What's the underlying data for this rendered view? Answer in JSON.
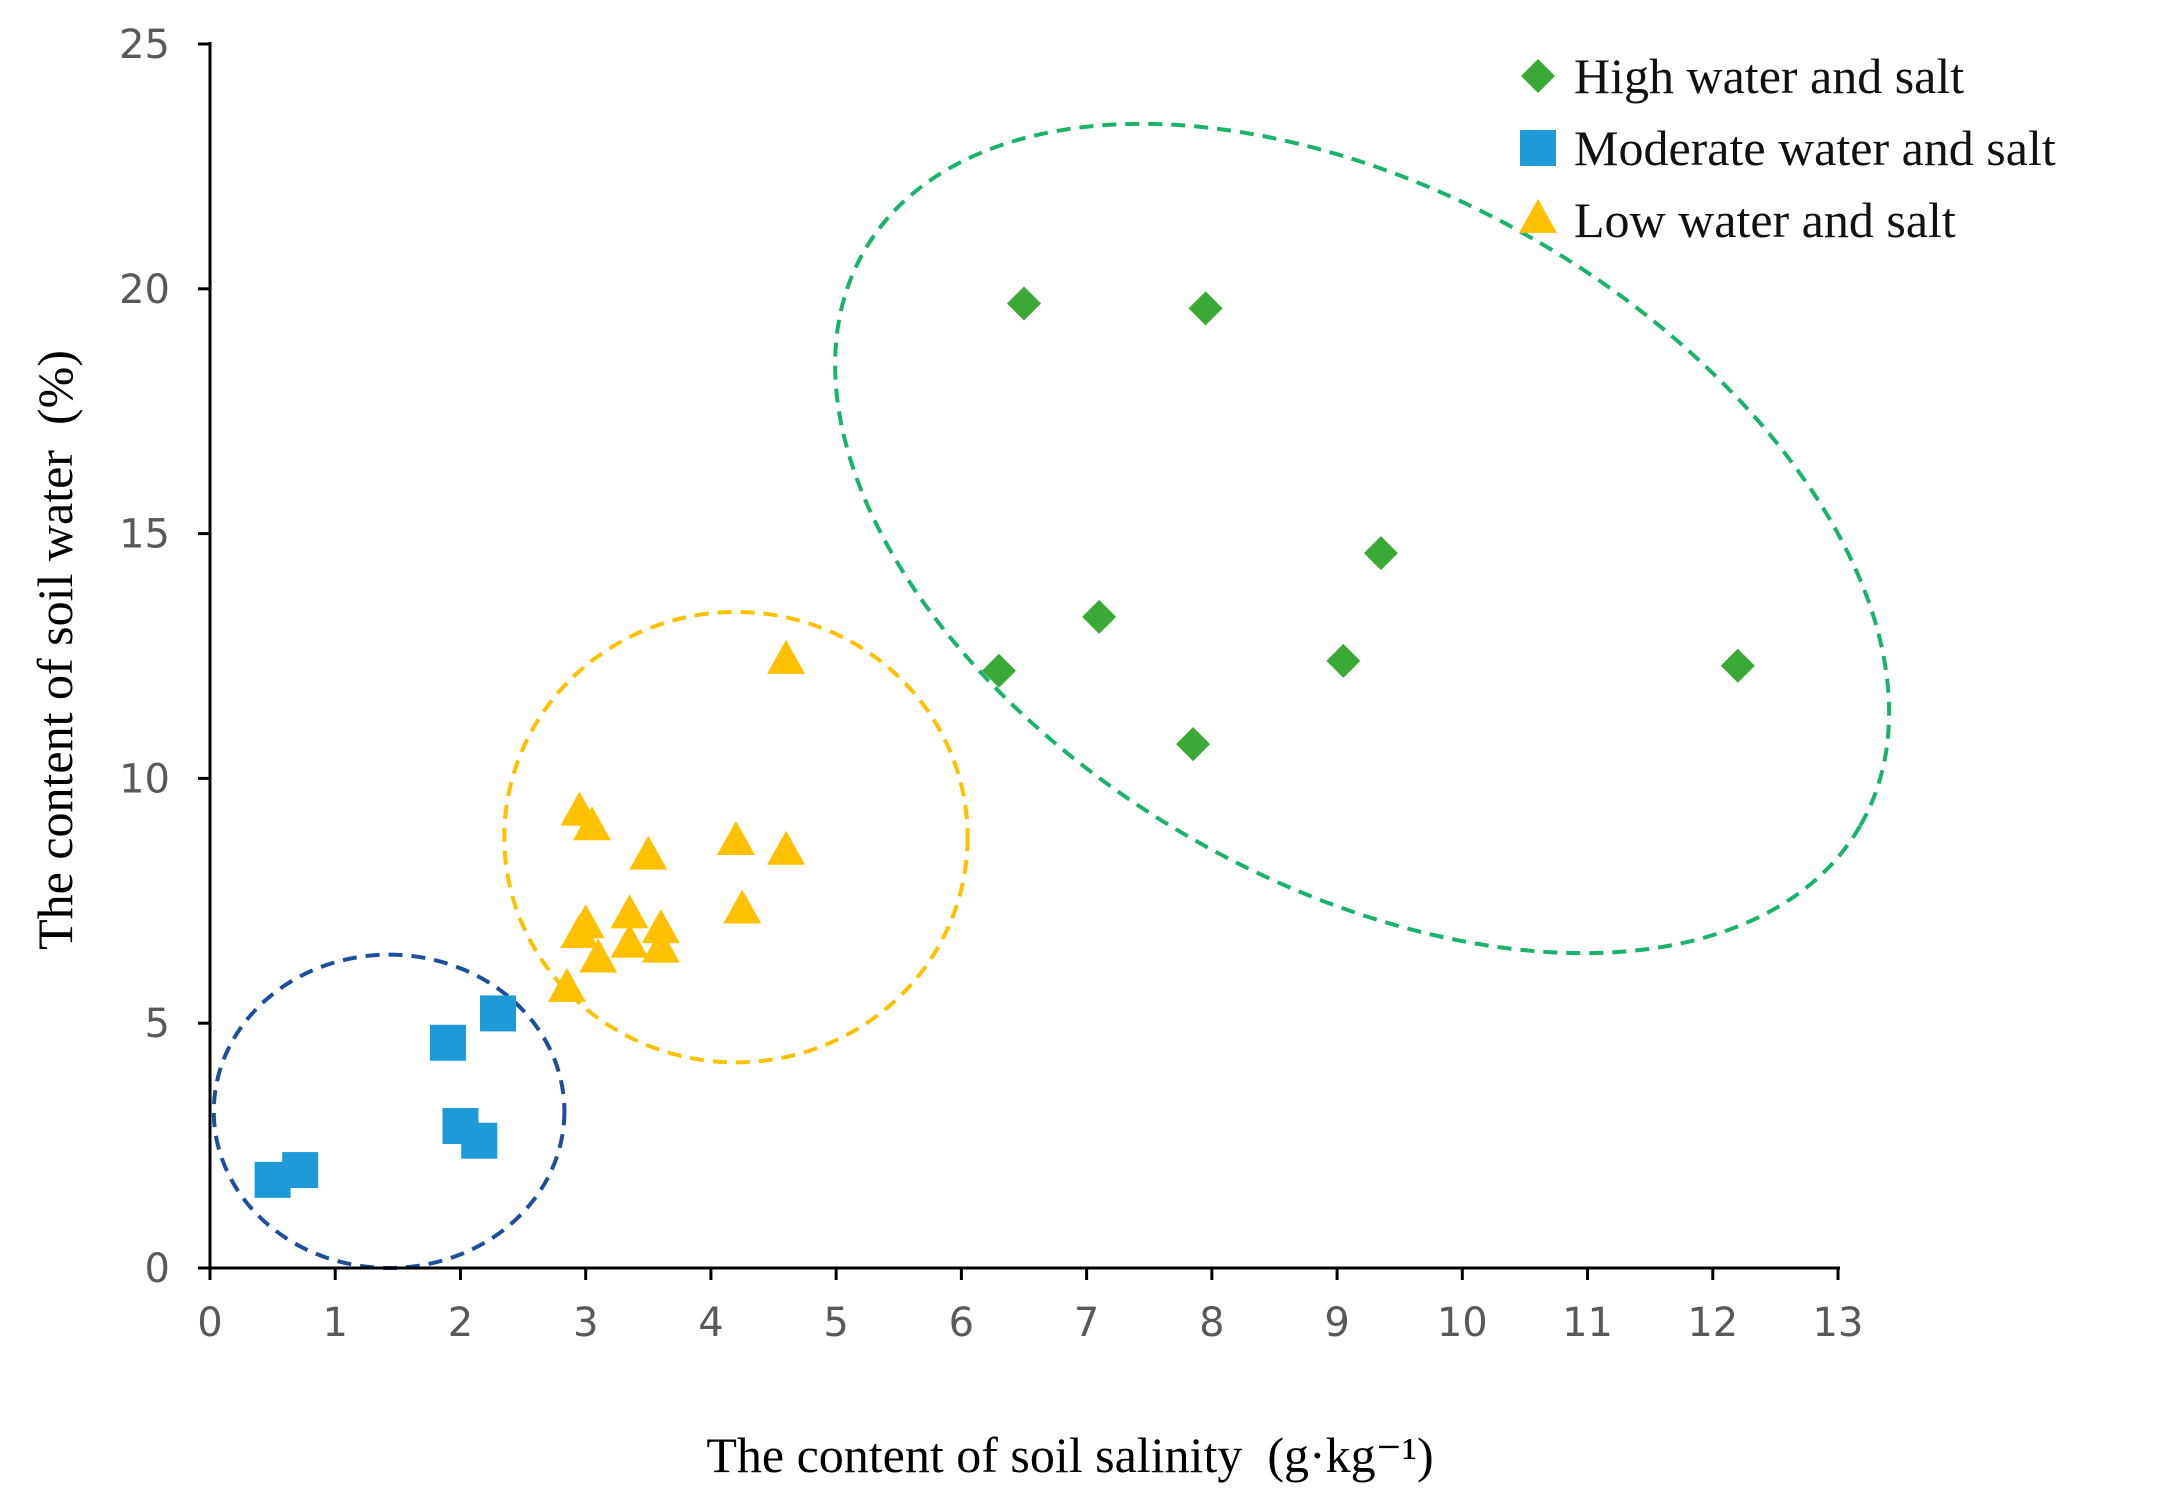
{
  "chart_data": {
    "type": "scatter",
    "title": "",
    "xlabel": "The content of soil salinity  (g·kg⁻¹)",
    "ylabel": "The content of soil water  (%)",
    "xlim": [
      0,
      13
    ],
    "ylim": [
      0,
      25
    ],
    "xticks": [
      "0",
      "1",
      "2",
      "3",
      "4",
      "5",
      "6",
      "7",
      "8",
      "9",
      "10",
      "11",
      "12",
      "13"
    ],
    "yticks": [
      "0",
      "5",
      "10",
      "15",
      "20",
      "25"
    ],
    "grid": false,
    "legend_position": "top-right",
    "series": [
      {
        "name": "High water and salt",
        "marker": "diamond",
        "color": "#3aa935",
        "points": [
          [
            6.5,
            19.7
          ],
          [
            7.95,
            19.6
          ],
          [
            9.35,
            14.6
          ],
          [
            7.1,
            13.3
          ],
          [
            6.3,
            12.2
          ],
          [
            9.05,
            12.4
          ],
          [
            12.2,
            12.3
          ],
          [
            7.85,
            10.7
          ]
        ]
      },
      {
        "name": "Moderate water and salt",
        "marker": "square",
        "color": "#1e9ad6",
        "points": [
          [
            2.3,
            5.2
          ],
          [
            1.9,
            4.6
          ],
          [
            2.0,
            2.9
          ],
          [
            2.15,
            2.6
          ],
          [
            0.5,
            1.8
          ],
          [
            0.72,
            2.0
          ]
        ]
      },
      {
        "name": "Low water and salt",
        "marker": "triangle",
        "color": "#ffc000",
        "points": [
          [
            4.6,
            12.4
          ],
          [
            2.95,
            9.3
          ],
          [
            3.05,
            9.0
          ],
          [
            4.2,
            8.7
          ],
          [
            4.6,
            8.5
          ],
          [
            3.5,
            8.4
          ],
          [
            4.25,
            7.3
          ],
          [
            3.35,
            7.2
          ],
          [
            2.95,
            6.8
          ],
          [
            3.0,
            7.0
          ],
          [
            3.6,
            6.9
          ],
          [
            3.1,
            6.3
          ],
          [
            3.35,
            6.6
          ],
          [
            3.6,
            6.5
          ],
          [
            2.85,
            5.7
          ]
        ]
      }
    ],
    "annotations": [
      {
        "type": "dashed-ellipse",
        "group": "High water and salt",
        "color": "#19b36b",
        "center": [
          9.2,
          14.9
        ],
        "x_radius": 4.2,
        "y_radius": 6.8,
        "rotation_deg": 0
      },
      {
        "type": "dashed-ellipse",
        "group": "Low water and salt",
        "color": "#ffc000",
        "center": [
          4.2,
          8.8
        ],
        "x_radius": 1.85,
        "y_radius": 4.6,
        "rotation_deg": 0
      },
      {
        "type": "dashed-ellipse",
        "group": "Moderate water and salt",
        "color": "#1f4e9a",
        "center": [
          1.43,
          3.2
        ],
        "x_radius": 1.4,
        "y_radius": 3.2,
        "rotation_deg": 0
      }
    ]
  }
}
